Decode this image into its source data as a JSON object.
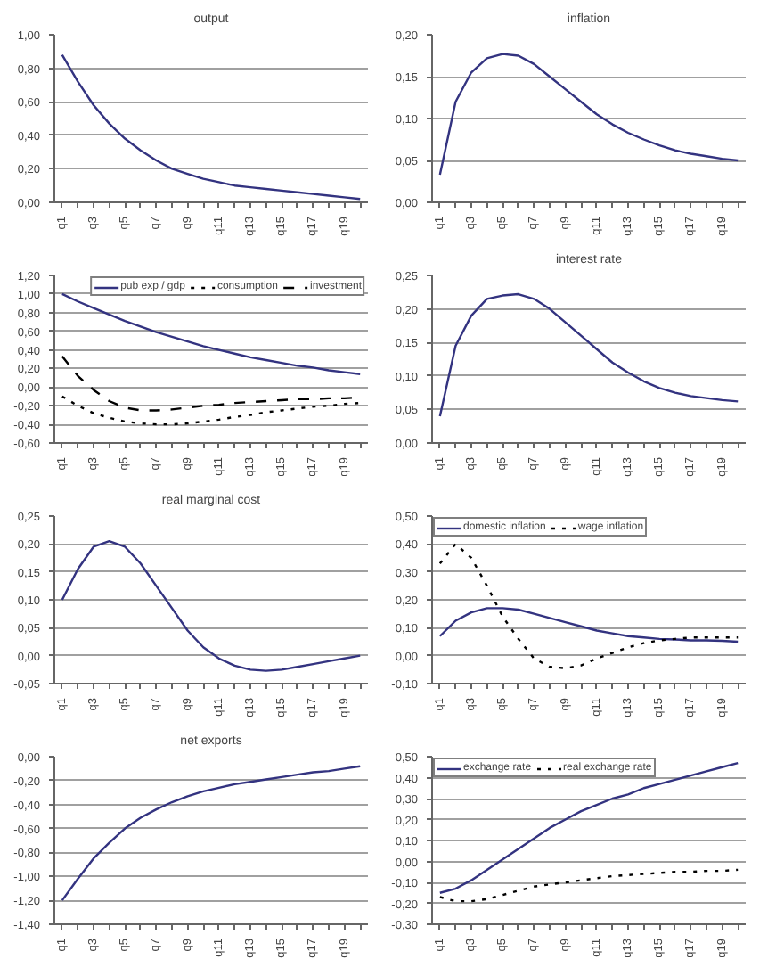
{
  "chart_data": [
    {
      "type": "line",
      "title": "output",
      "categories": [
        "q1",
        null,
        "q3",
        null,
        "q5",
        null,
        "q7",
        null,
        "q9",
        null,
        "q11",
        null,
        "q13",
        null,
        "q15",
        null,
        "q17",
        null,
        "q19",
        null
      ],
      "ylim": [
        0,
        1
      ],
      "yticks": [
        {
          "value": 0,
          "label": "0,00"
        },
        {
          "value": 0.2,
          "label": "0,20"
        },
        {
          "value": 0.4,
          "label": "0,40"
        },
        {
          "value": 0.6,
          "label": "0,60"
        },
        {
          "value": 0.8,
          "label": "0,80"
        },
        {
          "value": 1,
          "label": "1,00"
        }
      ],
      "grid": "y",
      "series": [
        {
          "color": "#333380",
          "line_style": "solid",
          "values": [
            0.88,
            0.72,
            0.58,
            0.47,
            0.38,
            0.31,
            0.25,
            0.2,
            0.17,
            0.14,
            0.12,
            0.1,
            0.09,
            0.08,
            0.07,
            0.06,
            0.05,
            0.04,
            0.03,
            0.02
          ]
        }
      ]
    },
    {
      "type": "line",
      "title": "inflation",
      "categories": [
        "q1",
        null,
        "q3",
        null,
        "q5",
        null,
        "q7",
        null,
        "q9",
        null,
        "q11",
        null,
        "q13",
        null,
        "q15",
        null,
        "q17",
        null,
        "q19",
        null
      ],
      "ylim": [
        0,
        0.2
      ],
      "yticks": [
        {
          "value": 0,
          "label": "0,00"
        },
        {
          "value": 0.05,
          "label": "0,05"
        },
        {
          "value": 0.1,
          "label": "0,10"
        },
        {
          "value": 0.15,
          "label": "0,15"
        },
        {
          "value": 0.2,
          "label": "0,20"
        }
      ],
      "grid": "y",
      "series": [
        {
          "color": "#333380",
          "line_style": "solid",
          "values": [
            0.033,
            0.12,
            0.155,
            0.172,
            0.177,
            0.175,
            0.165,
            0.15,
            0.135,
            0.12,
            0.105,
            0.093,
            0.083,
            0.075,
            0.068,
            0.062,
            0.058,
            0.055,
            0.052,
            0.05
          ]
        }
      ]
    },
    {
      "type": "line",
      "categories": [
        "q1",
        null,
        "q3",
        null,
        "q5",
        null,
        "q7",
        null,
        "q9",
        null,
        "q11",
        null,
        "q13",
        null,
        "q15",
        null,
        "q17",
        null,
        "q19",
        null
      ],
      "ylim": [
        -0.6,
        1.2
      ],
      "yticks": [
        {
          "value": -0.6,
          "label": "-0,60"
        },
        {
          "value": -0.4,
          "label": "-0,40"
        },
        {
          "value": -0.2,
          "label": "-0,20"
        },
        {
          "value": 0,
          "label": "0,00"
        },
        {
          "value": 0.2,
          "label": "0,20"
        },
        {
          "value": 0.4,
          "label": "0,40"
        },
        {
          "value": 0.6,
          "label": "0,60"
        },
        {
          "value": 0.8,
          "label": "0,80"
        },
        {
          "value": 1,
          "label": "1,00"
        },
        {
          "value": 1.2,
          "label": "1,20"
        }
      ],
      "grid": "y",
      "legend": "top right",
      "series": [
        {
          "name": "pub exp / gdp",
          "color": "#333380",
          "line_style": "solid",
          "values": [
            1.0,
            0.92,
            0.85,
            0.78,
            0.71,
            0.65,
            0.59,
            0.54,
            0.49,
            0.44,
            0.4,
            0.36,
            0.32,
            0.29,
            0.26,
            0.23,
            0.21,
            0.18,
            0.16,
            0.14
          ]
        },
        {
          "name": "consumption",
          "color": "#000000",
          "line_style": "dotted",
          "values": [
            -0.1,
            -0.2,
            -0.28,
            -0.33,
            -0.37,
            -0.39,
            -0.4,
            -0.4,
            -0.39,
            -0.37,
            -0.35,
            -0.32,
            -0.3,
            -0.27,
            -0.25,
            -0.23,
            -0.21,
            -0.2,
            -0.18,
            -0.17
          ]
        },
        {
          "name": "investment",
          "color": "#000000",
          "line_style": "dashed",
          "values": [
            0.33,
            0.12,
            -0.03,
            -0.15,
            -0.22,
            -0.25,
            -0.25,
            -0.24,
            -0.22,
            -0.2,
            -0.19,
            -0.17,
            -0.16,
            -0.15,
            -0.14,
            -0.13,
            -0.13,
            -0.12,
            -0.12,
            -0.11
          ]
        }
      ]
    },
    {
      "type": "line",
      "title": "interest rate",
      "categories": [
        "q1",
        null,
        "q3",
        null,
        "q5",
        null,
        "q7",
        null,
        "q9",
        null,
        "q11",
        null,
        "q13",
        null,
        "q15",
        null,
        "q17",
        null,
        "q19",
        null
      ],
      "ylim": [
        0,
        0.25
      ],
      "yticks": [
        {
          "value": 0,
          "label": "0,00"
        },
        {
          "value": 0.05,
          "label": "0,05"
        },
        {
          "value": 0.1,
          "label": "0,10"
        },
        {
          "value": 0.15,
          "label": "0,15"
        },
        {
          "value": 0.2,
          "label": "0,20"
        },
        {
          "value": 0.25,
          "label": "0,25"
        }
      ],
      "grid": "y",
      "series": [
        {
          "color": "#333380",
          "line_style": "solid",
          "values": [
            0.04,
            0.145,
            0.19,
            0.215,
            0.22,
            0.222,
            0.215,
            0.2,
            0.18,
            0.16,
            0.14,
            0.12,
            0.105,
            0.092,
            0.082,
            0.075,
            0.07,
            0.067,
            0.064,
            0.062
          ]
        }
      ]
    },
    {
      "type": "line",
      "title": "real marginal cost",
      "categories": [
        "q1",
        null,
        "q3",
        null,
        "q5",
        null,
        "q7",
        null,
        "q9",
        null,
        "q11",
        null,
        "q13",
        null,
        "q15",
        null,
        "q17",
        null,
        "q19",
        null
      ],
      "ylim": [
        -0.05,
        0.25
      ],
      "yticks": [
        {
          "value": -0.05,
          "label": "-0,05"
        },
        {
          "value": 0,
          "label": "0,00"
        },
        {
          "value": 0.05,
          "label": "0,05"
        },
        {
          "value": 0.1,
          "label": "0,10"
        },
        {
          "value": 0.15,
          "label": "0,15"
        },
        {
          "value": 0.2,
          "label": "0,20"
        },
        {
          "value": 0.25,
          "label": "0,25"
        }
      ],
      "grid": "y",
      "series": [
        {
          "color": "#333380",
          "line_style": "solid",
          "values": [
            0.1,
            0.155,
            0.195,
            0.205,
            0.195,
            0.165,
            0.125,
            0.085,
            0.045,
            0.015,
            -0.005,
            -0.018,
            -0.025,
            -0.027,
            -0.025,
            -0.02,
            -0.015,
            -0.01,
            -0.005,
            0.0
          ]
        }
      ]
    },
    {
      "type": "line",
      "categories": [
        "q1",
        null,
        "q3",
        null,
        "q5",
        null,
        "q7",
        null,
        "q9",
        null,
        "q11",
        null,
        "q13",
        null,
        "q15",
        null,
        "q17",
        null,
        "q19",
        null
      ],
      "ylim": [
        -0.1,
        0.5
      ],
      "yticks": [
        {
          "value": -0.1,
          "label": "-0,10"
        },
        {
          "value": 0,
          "label": "0,00"
        },
        {
          "value": 0.1,
          "label": "0,10"
        },
        {
          "value": 0.2,
          "label": "0,20"
        },
        {
          "value": 0.3,
          "label": "0,30"
        },
        {
          "value": 0.4,
          "label": "0,40"
        },
        {
          "value": 0.5,
          "label": "0,50"
        }
      ],
      "grid": "y",
      "legend": "top left",
      "series": [
        {
          "name": "domestic inflation",
          "color": "#333380",
          "line_style": "solid",
          "values": [
            0.07,
            0.125,
            0.155,
            0.17,
            0.17,
            0.165,
            0.15,
            0.135,
            0.12,
            0.105,
            0.09,
            0.08,
            0.07,
            0.065,
            0.06,
            0.058,
            0.055,
            0.055,
            0.053,
            0.05
          ]
        },
        {
          "name": "wage inflation",
          "color": "#000000",
          "line_style": "dotted",
          "values": [
            0.33,
            0.4,
            0.35,
            0.25,
            0.14,
            0.06,
            -0.01,
            -0.04,
            -0.045,
            -0.035,
            -0.01,
            0.01,
            0.03,
            0.045,
            0.055,
            0.06,
            0.065,
            0.065,
            0.065,
            0.065
          ]
        }
      ]
    },
    {
      "type": "line",
      "title": "net exports",
      "categories": [
        "q1",
        null,
        "q3",
        null,
        "q5",
        null,
        "q7",
        null,
        "q9",
        null,
        "q11",
        null,
        "q13",
        null,
        "q15",
        null,
        "q17",
        null,
        "q19",
        null
      ],
      "ylim": [
        -1.4,
        0
      ],
      "yticks": [
        {
          "value": -1.4,
          "label": "-1,40"
        },
        {
          "value": -1.2,
          "label": "-1,20"
        },
        {
          "value": -1,
          "label": "-1,00"
        },
        {
          "value": -0.8,
          "label": "-0,80"
        },
        {
          "value": -0.6,
          "label": "-0,60"
        },
        {
          "value": -0.4,
          "label": "-0,40"
        },
        {
          "value": -0.2,
          "label": "-0,20"
        },
        {
          "value": 0,
          "label": "0,00"
        }
      ],
      "grid": "y",
      "series": [
        {
          "color": "#333380",
          "line_style": "solid",
          "values": [
            -1.2,
            -1.02,
            -0.85,
            -0.72,
            -0.6,
            -0.51,
            -0.44,
            -0.38,
            -0.33,
            -0.29,
            -0.26,
            -0.23,
            -0.21,
            -0.19,
            -0.17,
            -0.15,
            -0.13,
            -0.12,
            -0.1,
            -0.08
          ]
        }
      ]
    },
    {
      "type": "line",
      "categories": [
        "q1",
        null,
        "q3",
        null,
        "q5",
        null,
        "q7",
        null,
        "q9",
        null,
        "q11",
        null,
        "q13",
        null,
        "q15",
        null,
        "q17",
        null,
        "q19",
        null
      ],
      "ylim": [
        -0.3,
        0.5
      ],
      "yticks": [
        {
          "value": -0.3,
          "label": "-0,30"
        },
        {
          "value": -0.2,
          "label": "-0,20"
        },
        {
          "value": -0.1,
          "label": "-0,10"
        },
        {
          "value": 0,
          "label": "0,00"
        },
        {
          "value": 0.1,
          "label": "0,10"
        },
        {
          "value": 0.2,
          "label": "0,20"
        },
        {
          "value": 0.3,
          "label": "0,30"
        },
        {
          "value": 0.4,
          "label": "0,40"
        },
        {
          "value": 0.5,
          "label": "0,50"
        }
      ],
      "grid": "y",
      "legend": "top left",
      "series": [
        {
          "name": "exchange rate",
          "color": "#333380",
          "line_style": "solid",
          "values": [
            -0.15,
            -0.13,
            -0.09,
            -0.04,
            0.01,
            0.06,
            0.11,
            0.16,
            0.2,
            0.24,
            0.27,
            0.3,
            0.32,
            0.35,
            0.37,
            0.39,
            0.41,
            0.43,
            0.45,
            0.47
          ]
        },
        {
          "name": "real exchange rate",
          "color": "#000000",
          "line_style": "dotted",
          "values": [
            -0.17,
            -0.19,
            -0.19,
            -0.18,
            -0.16,
            -0.14,
            -0.12,
            -0.11,
            -0.1,
            -0.09,
            -0.08,
            -0.07,
            -0.065,
            -0.06,
            -0.055,
            -0.05,
            -0.05,
            -0.045,
            -0.045,
            -0.04
          ]
        }
      ]
    }
  ]
}
